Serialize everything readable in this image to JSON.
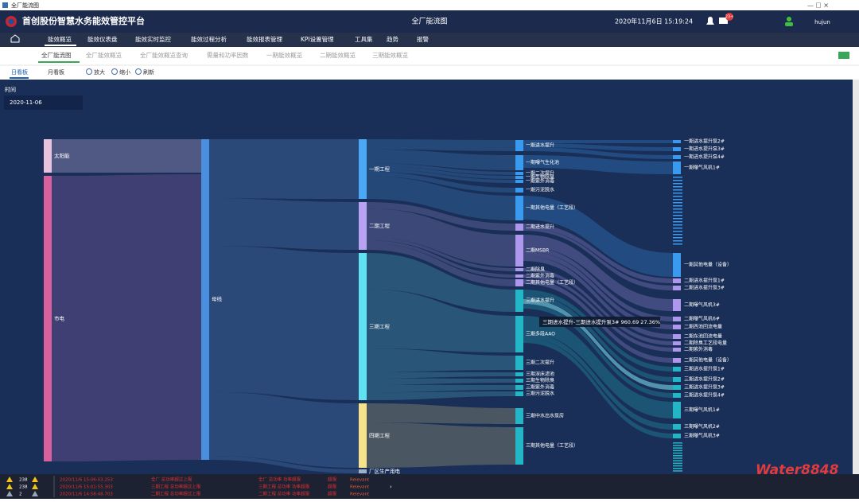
{
  "window": {
    "title": "全厂能流图"
  },
  "header": {
    "title": "首创股份智慧水务能效管控平台",
    "page": "全厂能流图",
    "datetime": "2020年11月6日 15:19:24",
    "badge": "23+",
    "user": "hujun"
  },
  "nav": [
    "能效概览",
    "能效仪表盘",
    "能效实时监控",
    "能效过程分析",
    "能效报表管理",
    "KPI设置管理",
    "工具集",
    "趋势",
    "报警"
  ],
  "tabs": [
    "全厂能流图",
    "全厂能效概览",
    "全厂能效概览查询",
    "需量和功率因数",
    "一期能效概览",
    "二期能效概览",
    "三期能效概览"
  ],
  "toolbar": {
    "views": [
      "日看板",
      "月看板"
    ],
    "actions": [
      "放大",
      "缩小",
      "刷新"
    ]
  },
  "filter": {
    "label": "时间",
    "date": "2020-11-06"
  },
  "sankey": {
    "sources": [
      "太阳能",
      "市电"
    ],
    "bus": "母线",
    "phases": [
      "一期工程",
      "二期工程",
      "三期工程",
      "四期工程",
      "厂区生产用电"
    ],
    "processes": [
      "一期进水提升",
      "一期曝气生化池",
      "一期二次提升",
      "一期生物除臭",
      "一期紫外消毒",
      "一期污泥脱水",
      "一期其他电量（工艺段）",
      "二期进水提升",
      "二期MSBR",
      "二期除臭",
      "二期紫外消毒",
      "二期其他电量（工艺段）",
      "三期进水提升",
      "三期多段AAO",
      "三期二次提升",
      "三期深床滤池",
      "三期生物除臭",
      "三期紫外消毒",
      "三期污泥脱水",
      "三期中水出水泵房",
      "三期其他电量（工艺段）"
    ],
    "devices": [
      "一期进水提升泵2#",
      "一期进水提升泵3#",
      "一期进水提升泵4#",
      "一期曝气风机1#",
      "一期其他电量（设备）",
      "二期进水提升泵1#",
      "二期进水提升泵3#",
      "二期曝气风机3#",
      "二期曝气风机6#",
      "二期西池回流电量",
      "二期东池回流电量",
      "二期除臭工艺段电量",
      "二期紫外消毒",
      "二期其他电量（设备）",
      "三期进水提升泵1#",
      "三期进水提升泵2#",
      "三期进水提升泵3#",
      "三期进水提升泵4#",
      "三期曝气风机1#",
      "三期曝气风机2#",
      "三期曝气风机3#"
    ]
  },
  "tooltip": "三期进水提升-三期进水提升泵3# 960.69 27.36%",
  "alarm_counts": [
    "238",
    "238",
    "2"
  ],
  "alarms": [
    {
      "time": "2020/11/6 15:06:03.253",
      "source": "全厂 总功率超过上限",
      "message": "全厂 总功率 功率超限",
      "level": "超限",
      "status": "Relevant"
    },
    {
      "time": "2020/11/6 15:01:55.303",
      "source": "三期工程 总功率超过上限",
      "message": "三期工程 总功率 功率超限",
      "level": "超限",
      "status": "Relevant"
    },
    {
      "time": "2020/11/6 14:58:48.703",
      "source": "二期工程 总功率超过上限",
      "message": "二期工程 总功率 功率超限",
      "level": "超限",
      "status": "Relevant"
    }
  ],
  "watermark": "Water8848"
}
